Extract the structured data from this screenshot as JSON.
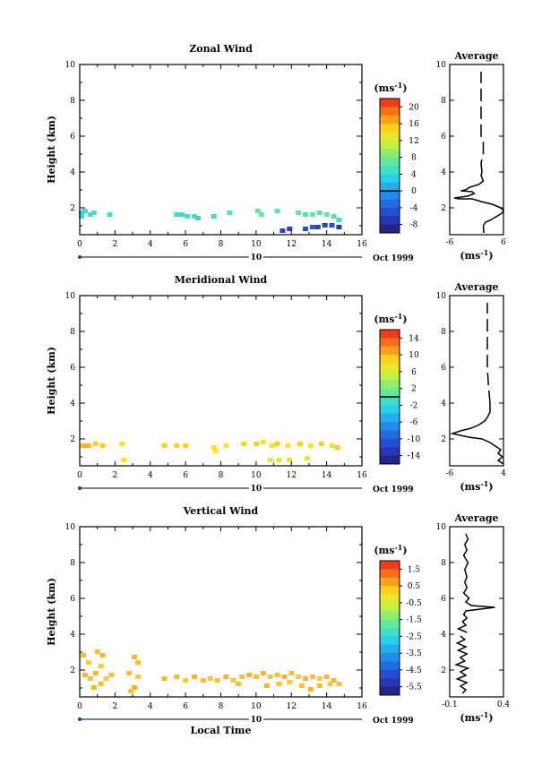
{
  "chart_data": [
    {
      "type": "heatmap",
      "title": "Zonal Wind",
      "ylabel": "Height (km)",
      "xlim": [
        0,
        16
      ],
      "ylim": [
        0.5,
        10
      ],
      "x_ticks": [
        "0",
        "2",
        "4",
        "6",
        "8",
        "10",
        "12",
        "14",
        "16"
      ],
      "y_ticks": [
        "2",
        "4",
        "6",
        "8",
        "10"
      ],
      "date_marker": "10",
      "date_label": "Oct 1999",
      "colorbar": {
        "unit": "(ms",
        "unit_exp": "-1",
        "unit_close": ")",
        "labels": [
          "20",
          "16",
          "12",
          "8",
          "4",
          "0",
          "-4",
          "-8"
        ],
        "min": -10,
        "max": 22,
        "zero_line": 0
      },
      "points": [
        {
          "t": 0.1,
          "h": 1.7,
          "v": 4
        },
        {
          "t": 0.3,
          "h": 1.8,
          "v": 5
        },
        {
          "t": 0.1,
          "h": 1.5,
          "v": 4
        },
        {
          "t": 0.6,
          "h": 1.6,
          "v": 5
        },
        {
          "t": 0.8,
          "h": 1.7,
          "v": 5
        },
        {
          "t": 1.7,
          "h": 1.6,
          "v": 5
        },
        {
          "t": 5.5,
          "h": 1.6,
          "v": 5
        },
        {
          "t": 5.8,
          "h": 1.6,
          "v": 4
        },
        {
          "t": 6.1,
          "h": 1.5,
          "v": 5
        },
        {
          "t": 6.5,
          "h": 1.5,
          "v": 5
        },
        {
          "t": 6.7,
          "h": 1.4,
          "v": 4
        },
        {
          "t": 7.6,
          "h": 1.5,
          "v": 5
        },
        {
          "t": 8.5,
          "h": 1.7,
          "v": 6
        },
        {
          "t": 10.1,
          "h": 1.8,
          "v": 7
        },
        {
          "t": 10.3,
          "h": 1.6,
          "v": 7
        },
        {
          "t": 11.2,
          "h": 1.8,
          "v": 6
        },
        {
          "t": 12.4,
          "h": 1.7,
          "v": 7
        },
        {
          "t": 12.8,
          "h": 1.6,
          "v": 6
        },
        {
          "t": 13.2,
          "h": 1.6,
          "v": 7
        },
        {
          "t": 13.6,
          "h": 1.7,
          "v": 6
        },
        {
          "t": 14.0,
          "h": 1.6,
          "v": 7
        },
        {
          "t": 14.4,
          "h": 1.5,
          "v": 6
        },
        {
          "t": 14.7,
          "h": 1.3,
          "v": 5
        },
        {
          "t": 11.5,
          "h": 0.7,
          "v": -6
        },
        {
          "t": 11.9,
          "h": 0.8,
          "v": -6
        },
        {
          "t": 12.8,
          "h": 0.8,
          "v": -5
        },
        {
          "t": 13.2,
          "h": 0.9,
          "v": -4
        },
        {
          "t": 13.5,
          "h": 0.9,
          "v": -6
        },
        {
          "t": 13.9,
          "h": 1.0,
          "v": -6
        },
        {
          "t": 14.3,
          "h": 1.0,
          "v": -5
        },
        {
          "t": 14.7,
          "h": 0.9,
          "v": -7
        }
      ],
      "average": {
        "title": "Average",
        "xlabel": "(ms",
        "xlabel_exp": "-1",
        "xlabel_close": ")",
        "xlim": [
          -6,
          6
        ],
        "x_ticks": [
          "-6",
          "6"
        ],
        "ylim": [
          0.5,
          10
        ],
        "y_ticks": [
          "2",
          "4",
          "6",
          "8",
          "10"
        ],
        "profile": [
          [
            1.6,
            0.6
          ],
          [
            1.5,
            1.0
          ],
          [
            2.0,
            1.2
          ],
          [
            3.0,
            1.3
          ],
          [
            4.0,
            1.45
          ],
          [
            5.0,
            1.6
          ],
          [
            5.7,
            1.7
          ],
          [
            6.0,
            1.85
          ],
          [
            5.4,
            2.0
          ],
          [
            3.5,
            2.2
          ],
          [
            1.0,
            2.35
          ],
          [
            -1.0,
            2.5
          ],
          [
            -4.0,
            2.5
          ],
          [
            -5.0,
            2.55
          ],
          [
            -2.0,
            2.65
          ],
          [
            -0.5,
            2.8
          ],
          [
            -1.0,
            2.9
          ],
          [
            -3.5,
            2.95
          ],
          [
            -2.5,
            3.0
          ],
          [
            -1.5,
            3.15
          ],
          [
            0.5,
            3.3
          ],
          [
            1.5,
            3.5
          ],
          [
            1.0,
            3.8
          ],
          [
            1.2,
            4.0
          ],
          [
            1.0,
            4.5
          ],
          [
            1.5,
            5.0
          ],
          [
            1.5,
            5.7
          ],
          [
            1.0,
            6.0
          ],
          [
            1.0,
            7.0
          ],
          [
            1.0,
            7.5
          ],
          [
            1.0,
            8.5
          ],
          [
            1.0,
            9.6
          ]
        ]
      }
    },
    {
      "type": "heatmap",
      "title": "Meridional Wind",
      "ylabel": "Height (km)",
      "xlim": [
        0,
        16
      ],
      "ylim": [
        0.5,
        10
      ],
      "x_ticks": [
        "0",
        "2",
        "4",
        "6",
        "8",
        "10",
        "12",
        "14",
        "16"
      ],
      "y_ticks": [
        "2",
        "4",
        "6",
        "8",
        "10"
      ],
      "date_marker": "10",
      "date_label": "Oct 1999",
      "colorbar": {
        "unit": "(ms",
        "unit_exp": "-1",
        "unit_close": ")",
        "labels": [
          "14",
          "10",
          "6",
          "2",
          "-2",
          "-6",
          "-10",
          "-14"
        ],
        "min": -16,
        "max": 16,
        "zero_line": 0
      },
      "points": [
        {
          "t": 0.2,
          "h": 1.6,
          "v": 10
        },
        {
          "t": 0.5,
          "h": 1.6,
          "v": 10
        },
        {
          "t": 0.9,
          "h": 1.7,
          "v": 9
        },
        {
          "t": 1.3,
          "h": 1.6,
          "v": 9
        },
        {
          "t": 2.4,
          "h": 1.7,
          "v": 8
        },
        {
          "t": 2.5,
          "h": 0.8,
          "v": 8
        },
        {
          "t": 4.8,
          "h": 1.6,
          "v": 9
        },
        {
          "t": 5.5,
          "h": 1.6,
          "v": 9
        },
        {
          "t": 6.0,
          "h": 1.6,
          "v": 9
        },
        {
          "t": 7.6,
          "h": 1.5,
          "v": 8
        },
        {
          "t": 7.7,
          "h": 1.3,
          "v": 8
        },
        {
          "t": 8.3,
          "h": 1.6,
          "v": 8
        },
        {
          "t": 9.3,
          "h": 1.7,
          "v": 9
        },
        {
          "t": 10.0,
          "h": 1.7,
          "v": 9
        },
        {
          "t": 10.4,
          "h": 1.8,
          "v": 8
        },
        {
          "t": 10.9,
          "h": 1.6,
          "v": 8
        },
        {
          "t": 11.2,
          "h": 1.7,
          "v": 9
        },
        {
          "t": 11.8,
          "h": 1.6,
          "v": 8
        },
        {
          "t": 12.5,
          "h": 1.7,
          "v": 9
        },
        {
          "t": 13.1,
          "h": 1.6,
          "v": 8
        },
        {
          "t": 13.7,
          "h": 1.7,
          "v": 9
        },
        {
          "t": 14.3,
          "h": 1.6,
          "v": 8
        },
        {
          "t": 14.6,
          "h": 1.5,
          "v": 9
        },
        {
          "t": 10.8,
          "h": 0.8,
          "v": 6
        },
        {
          "t": 11.3,
          "h": 0.8,
          "v": 7
        },
        {
          "t": 11.9,
          "h": 0.8,
          "v": 7
        },
        {
          "t": 12.9,
          "h": 0.9,
          "v": 7
        }
      ],
      "average": {
        "title": "Average",
        "xlabel": "(ms",
        "xlabel_exp": "-1",
        "xlabel_close": ")",
        "xlim": [
          -6,
          4
        ],
        "x_ticks": [
          "-6",
          "4"
        ],
        "ylim": [
          0.5,
          10
        ],
        "y_ticks": [
          "2",
          "4",
          "6",
          "8",
          "10"
        ],
        "profile": [
          [
            4.0,
            0.6
          ],
          [
            3.0,
            0.8
          ],
          [
            3.8,
            1.0
          ],
          [
            3.0,
            1.2
          ],
          [
            3.5,
            1.4
          ],
          [
            2.5,
            1.6
          ],
          [
            1.5,
            1.8
          ],
          [
            0.0,
            2.0
          ],
          [
            -2.5,
            2.1
          ],
          [
            -4.0,
            2.2
          ],
          [
            -5.5,
            2.3
          ],
          [
            -4.0,
            2.45
          ],
          [
            -2.0,
            2.6
          ],
          [
            -0.5,
            2.8
          ],
          [
            0.5,
            3.0
          ],
          [
            1.0,
            3.2
          ],
          [
            1.5,
            3.5
          ],
          [
            1.5,
            4.0
          ],
          [
            1.2,
            5.0
          ],
          [
            1.0,
            6.0
          ],
          [
            1.0,
            7.0
          ],
          [
            1.0,
            8.0
          ],
          [
            1.0,
            9.6
          ]
        ]
      }
    },
    {
      "type": "heatmap",
      "title": "Vertical Wind",
      "ylabel": "Height (km)",
      "xlabel": "Local Time",
      "xlim": [
        0,
        16
      ],
      "ylim": [
        0.5,
        10
      ],
      "x_ticks": [
        "0",
        "2",
        "4",
        "6",
        "8",
        "10",
        "12",
        "14",
        "16"
      ],
      "y_ticks": [
        "2",
        "4",
        "6",
        "8",
        "10"
      ],
      "date_marker": "10",
      "date_label": "Oct 1999",
      "colorbar": {
        "unit": "(ms",
        "unit_exp": "-1",
        "unit_close": ")",
        "labels": [
          "1.5",
          "0.5",
          "-0.5",
          "-1.5",
          "-2.5",
          "-3.5",
          "-4.5",
          "-5.5"
        ],
        "min": -6.0,
        "max": 2.0
      },
      "points": [
        {
          "t": 0.2,
          "h": 2.8,
          "v": 0.4
        },
        {
          "t": 0.5,
          "h": 2.4,
          "v": 0.3
        },
        {
          "t": 1.0,
          "h": 3.0,
          "v": 0.4
        },
        {
          "t": 1.3,
          "h": 2.8,
          "v": 0.5
        },
        {
          "t": 1.2,
          "h": 2.2,
          "v": 0.3
        },
        {
          "t": 0.3,
          "h": 1.7,
          "v": 0.5
        },
        {
          "t": 0.6,
          "h": 1.5,
          "v": 0.4
        },
        {
          "t": 0.9,
          "h": 1.8,
          "v": 0.5
        },
        {
          "t": 1.5,
          "h": 1.5,
          "v": 0.3
        },
        {
          "t": 1.8,
          "h": 1.7,
          "v": 0.4
        },
        {
          "t": 1.2,
          "h": 1.2,
          "v": 0.4
        },
        {
          "t": 0.8,
          "h": 1.0,
          "v": 0.5
        },
        {
          "t": 3.1,
          "h": 2.7,
          "v": 0.5
        },
        {
          "t": 3.3,
          "h": 2.4,
          "v": 0.4
        },
        {
          "t": 2.8,
          "h": 1.8,
          "v": 0.4
        },
        {
          "t": 3.3,
          "h": 1.6,
          "v": 0.3
        },
        {
          "t": 3.1,
          "h": 1.0,
          "v": 0.6
        },
        {
          "t": 2.9,
          "h": 0.8,
          "v": 0.4
        },
        {
          "t": 4.8,
          "h": 1.5,
          "v": 0.5
        },
        {
          "t": 5.5,
          "h": 1.6,
          "v": 0.4
        },
        {
          "t": 6.0,
          "h": 1.4,
          "v": 0.3
        },
        {
          "t": 6.5,
          "h": 1.6,
          "v": 0.5
        },
        {
          "t": 7.0,
          "h": 1.4,
          "v": 0.4
        },
        {
          "t": 7.4,
          "h": 1.5,
          "v": 0.3
        },
        {
          "t": 7.8,
          "h": 1.4,
          "v": 0.4
        },
        {
          "t": 8.3,
          "h": 1.6,
          "v": 0.5
        },
        {
          "t": 8.7,
          "h": 1.4,
          "v": 0.3
        },
        {
          "t": 9.2,
          "h": 1.6,
          "v": 0.4
        },
        {
          "t": 9.6,
          "h": 1.7,
          "v": 0.5
        },
        {
          "t": 10.0,
          "h": 1.6,
          "v": 0.4
        },
        {
          "t": 10.4,
          "h": 1.8,
          "v": 0.5
        },
        {
          "t": 10.8,
          "h": 1.6,
          "v": 0.3
        },
        {
          "t": 11.2,
          "h": 1.7,
          "v": 0.4
        },
        {
          "t": 11.6,
          "h": 1.6,
          "v": 0.5
        },
        {
          "t": 12.0,
          "h": 1.8,
          "v": 0.4
        },
        {
          "t": 12.4,
          "h": 1.6,
          "v": 0.3
        },
        {
          "t": 12.8,
          "h": 1.5,
          "v": 0.5
        },
        {
          "t": 13.2,
          "h": 1.6,
          "v": 0.4
        },
        {
          "t": 13.6,
          "h": 1.5,
          "v": 0.3
        },
        {
          "t": 14.0,
          "h": 1.6,
          "v": 0.4
        },
        {
          "t": 14.4,
          "h": 1.4,
          "v": 0.5
        },
        {
          "t": 14.7,
          "h": 1.2,
          "v": 0.4
        },
        {
          "t": 9.0,
          "h": 1.2,
          "v": 0.4
        },
        {
          "t": 10.6,
          "h": 1.1,
          "v": 0.5
        },
        {
          "t": 11.3,
          "h": 1.2,
          "v": 0.4
        },
        {
          "t": 11.9,
          "h": 1.3,
          "v": 0.3
        },
        {
          "t": 12.6,
          "h": 1.1,
          "v": 0.4
        },
        {
          "t": 13.1,
          "h": 0.9,
          "v": 0.5
        },
        {
          "t": 13.6,
          "h": 1.1,
          "v": 0.4
        },
        {
          "t": 14.2,
          "h": 1.2,
          "v": 0.3
        }
      ],
      "average": {
        "title": "Average",
        "xlabel": "(ms",
        "xlabel_exp": "-1",
        "xlabel_close": ")",
        "xlim": [
          -0.1,
          0.4
        ],
        "x_ticks": [
          "-0.1",
          "0.4"
        ],
        "ylim": [
          0.5,
          10
        ],
        "y_ticks": [
          "2",
          "4",
          "6",
          "8",
          "10"
        ],
        "profile": [
          [
            0.02,
            0.7
          ],
          [
            0.05,
            0.9
          ],
          [
            0.0,
            1.1
          ],
          [
            0.06,
            1.3
          ],
          [
            -0.03,
            1.5
          ],
          [
            0.05,
            1.7
          ],
          [
            0.0,
            1.9
          ],
          [
            0.07,
            2.1
          ],
          [
            -0.04,
            2.3
          ],
          [
            0.04,
            2.5
          ],
          [
            0.0,
            2.7
          ],
          [
            0.06,
            2.9
          ],
          [
            -0.02,
            3.1
          ],
          [
            0.05,
            3.3
          ],
          [
            -0.03,
            3.5
          ],
          [
            0.04,
            3.7
          ],
          [
            0.0,
            3.9
          ],
          [
            0.06,
            4.1
          ],
          [
            -0.02,
            4.3
          ],
          [
            0.05,
            4.5
          ],
          [
            0.02,
            4.7
          ],
          [
            0.06,
            4.9
          ],
          [
            0.03,
            5.1
          ],
          [
            0.05,
            5.3
          ],
          [
            0.32,
            5.5
          ],
          [
            0.1,
            5.6
          ],
          [
            0.05,
            5.8
          ],
          [
            0.08,
            6.0
          ],
          [
            0.03,
            6.3
          ],
          [
            0.06,
            6.6
          ],
          [
            0.04,
            6.9
          ],
          [
            0.06,
            7.2
          ],
          [
            0.04,
            7.6
          ],
          [
            0.07,
            8.0
          ],
          [
            0.03,
            8.4
          ],
          [
            0.06,
            8.7
          ],
          [
            0.04,
            9.0
          ],
          [
            0.07,
            9.3
          ],
          [
            0.05,
            9.6
          ]
        ]
      }
    }
  ]
}
